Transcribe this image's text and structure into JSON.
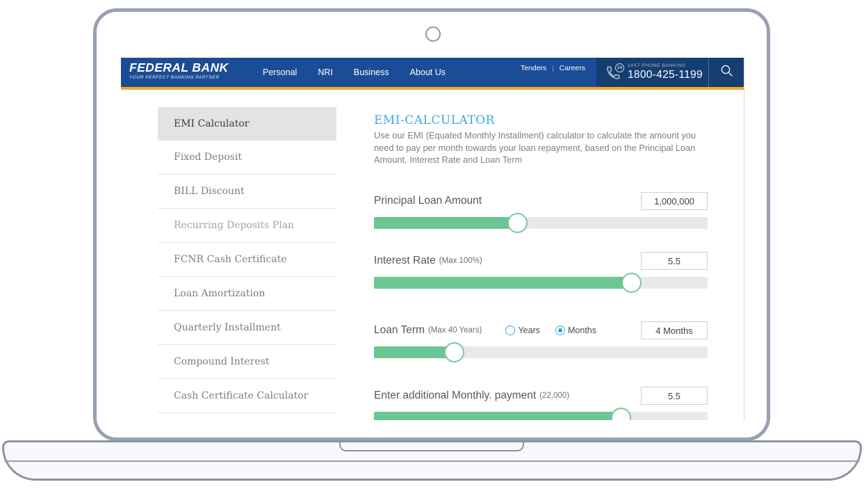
{
  "header": {
    "logo_title": "FEDERAL BANK",
    "logo_tagline": "YOUR PERFECT BANKING PARTNER",
    "nav": [
      "Personal",
      "NRI",
      "Business",
      "About Us"
    ],
    "links": [
      "Tenders",
      "Careers"
    ],
    "link_separator": "|",
    "phone": {
      "badge": "24",
      "label": "24X7 PHONE BANKING",
      "number": "1800-425-1199"
    }
  },
  "sidebar": {
    "items": [
      {
        "label": "EMI Calculator",
        "active": true,
        "muted": false
      },
      {
        "label": "Fixed Deposit",
        "active": false,
        "muted": false
      },
      {
        "label": "BILL Discount",
        "active": false,
        "muted": false
      },
      {
        "label": "Recurring Deposits Plan",
        "active": false,
        "muted": true
      },
      {
        "label": "FCNR Cash Certificate",
        "active": false,
        "muted": false
      },
      {
        "label": "Loan Amortization",
        "active": false,
        "muted": false
      },
      {
        "label": "Quarterly Installment",
        "active": false,
        "muted": false
      },
      {
        "label": "Compound Interest",
        "active": false,
        "muted": false
      },
      {
        "label": "Cash Certificate Calculator",
        "active": false,
        "muted": false
      }
    ]
  },
  "main": {
    "title": "EMI-CALCULATOR",
    "description": "Use our EMI (Equated Monthly Installment) calculator to calculate the amount you need to pay per month towards your loan repayment, based on the Principal Loan Amount, Interest Rate and Loan Term",
    "sliders": [
      {
        "label": "Principal Loan Amount",
        "note": "",
        "value": "1,000,000",
        "percent": 43
      },
      {
        "label": "Interest Rate",
        "note": "(Max 100%)",
        "value": "5.5",
        "percent": 77
      },
      {
        "label": "Loan Term",
        "note": "(Max 40 Years)",
        "value": "4 Months",
        "percent": 24,
        "radios": [
          {
            "label": "Years",
            "selected": false
          },
          {
            "label": "Months",
            "selected": true
          }
        ]
      },
      {
        "label": "Enter additional Monthly. payment",
        "note": "(22,000)",
        "value": "5.5",
        "percent": 74
      }
    ]
  },
  "colors": {
    "header_blue": "#1B4C96",
    "header_dark_blue": "#173E72",
    "accent_orange": "#F5A623",
    "title_blue": "#3FA9E0",
    "slider_green": "#6CC693",
    "radio_blue": "#2F9FE0",
    "frame_gray": "#98A1B1"
  }
}
